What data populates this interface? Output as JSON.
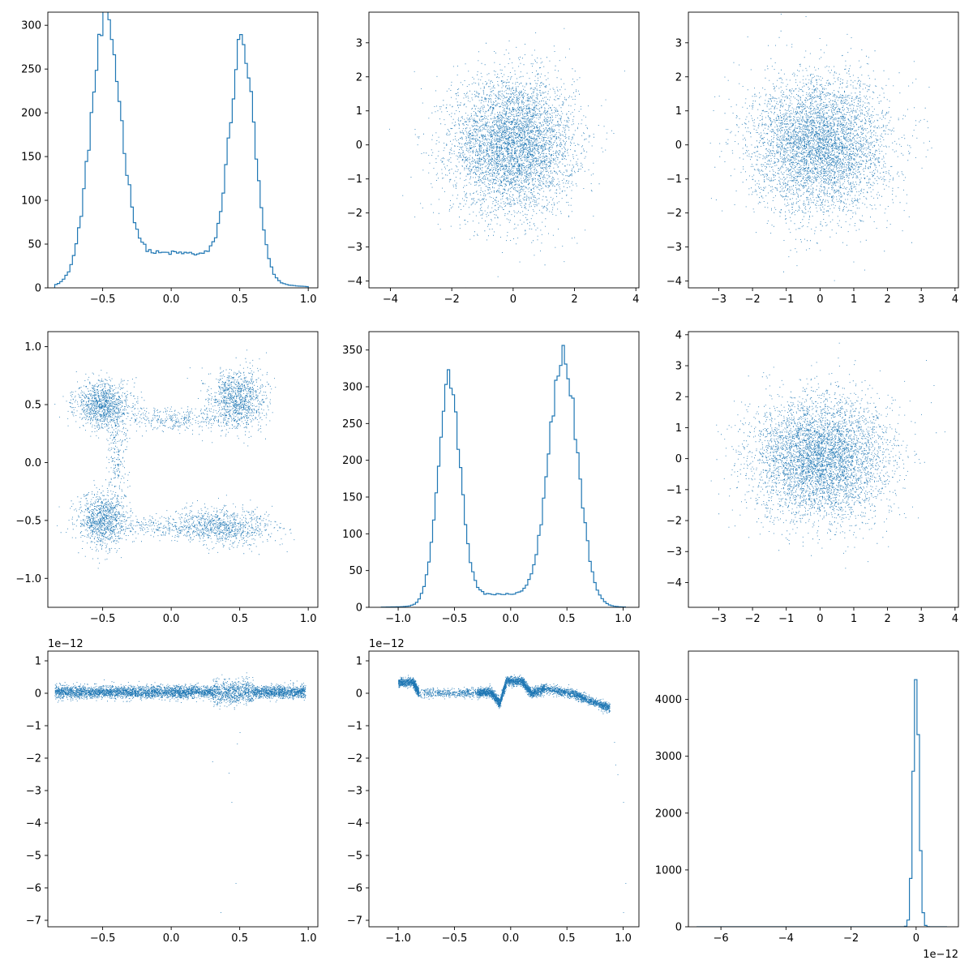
{
  "figure": {
    "rows": 3,
    "cols": 3,
    "series_color": "#1f77b4"
  },
  "chart_data": [
    {
      "type": "histogram",
      "panel": [
        0,
        0
      ],
      "xlim": [
        -0.9,
        1.07
      ],
      "ylim": [
        0,
        315
      ],
      "xticks": [
        -0.5,
        0.0,
        0.5,
        1.0
      ],
      "xticklabels": [
        "−0.5",
        "0.0",
        "0.5",
        "1.0"
      ],
      "yticks": [
        0,
        50,
        100,
        150,
        200,
        250,
        300
      ],
      "yticklabels": [
        "0",
        "50",
        "100",
        "150",
        "200",
        "250",
        "300"
      ],
      "offset_label": "",
      "peaks": [
        {
          "center": -0.48,
          "width": 0.11,
          "height": 280
        },
        {
          "center": 0.52,
          "width": 0.09,
          "height": 255
        }
      ],
      "baseline": 40,
      "support": [
        -0.85,
        1.0
      ],
      "bins": 100
    },
    {
      "type": "scatter",
      "panel": [
        0,
        1
      ],
      "xlim": [
        -4.7,
        4.1
      ],
      "ylim": [
        -4.2,
        3.9
      ],
      "xticks": [
        -4,
        -2,
        0,
        2,
        4
      ],
      "xticklabels": [
        "−4",
        "−2",
        "0",
        "2",
        "4"
      ],
      "yticks": [
        -4,
        -3,
        -2,
        -1,
        0,
        1,
        2,
        3
      ],
      "yticklabels": [
        "−4",
        "−3",
        "−2",
        "−1",
        "0",
        "1",
        "2",
        "3"
      ],
      "offset_label": "",
      "distribution": "gaussian",
      "mean": [
        0,
        0
      ],
      "std": [
        1,
        1
      ],
      "points": 5000
    },
    {
      "type": "scatter",
      "panel": [
        0,
        2
      ],
      "xlim": [
        -3.9,
        4.1
      ],
      "ylim": [
        -4.2,
        3.9
      ],
      "xticks": [
        -3,
        -2,
        -1,
        0,
        1,
        2,
        3,
        4
      ],
      "xticklabels": [
        "−3",
        "−2",
        "−1",
        "0",
        "1",
        "2",
        "3",
        "4"
      ],
      "yticks": [
        -4,
        -3,
        -2,
        -1,
        0,
        1,
        2,
        3
      ],
      "yticklabels": [
        "−4",
        "−3",
        "−2",
        "−1",
        "0",
        "1",
        "2",
        "3"
      ],
      "offset_label": "",
      "distribution": "gaussian",
      "mean": [
        0,
        0
      ],
      "std": [
        1,
        1
      ],
      "points": 5000
    },
    {
      "type": "scatter",
      "panel": [
        1,
        0
      ],
      "xlim": [
        -0.9,
        1.07
      ],
      "ylim": [
        -1.25,
        1.13
      ],
      "xticks": [
        -0.5,
        0.0,
        0.5,
        1.0
      ],
      "xticklabels": [
        "−0.5",
        "0.0",
        "0.5",
        "1.0"
      ],
      "yticks": [
        -1.0,
        -0.5,
        0.0,
        0.5,
        1.0
      ],
      "yticklabels": [
        "−1.0",
        "−0.5",
        "0.0",
        "0.5",
        "1.0"
      ],
      "offset_label": "",
      "clusters": [
        {
          "center": [
            -0.5,
            0.5
          ],
          "spread": [
            0.1,
            0.1
          ],
          "weight": 0.22
        },
        {
          "center": [
            0.48,
            0.55
          ],
          "spread": [
            0.1,
            0.13
          ],
          "weight": 0.22
        },
        {
          "center": [
            -0.5,
            -0.5
          ],
          "spread": [
            0.09,
            0.12
          ],
          "weight": 0.2
        },
        {
          "center": [
            0.4,
            -0.55
          ],
          "spread": [
            0.18,
            0.08
          ],
          "weight": 0.16
        },
        {
          "center": [
            0.0,
            0.38
          ],
          "spread": [
            0.25,
            0.05
          ],
          "weight": 0.08
        },
        {
          "center": [
            0.0,
            -0.55
          ],
          "spread": [
            0.3,
            0.05
          ],
          "weight": 0.08
        },
        {
          "center": [
            -0.4,
            0.0
          ],
          "spread": [
            0.04,
            0.2
          ],
          "weight": 0.04
        }
      ],
      "points": 5000
    },
    {
      "type": "histogram",
      "panel": [
        1,
        1
      ],
      "xlim": [
        -1.26,
        1.14
      ],
      "ylim": [
        0,
        375
      ],
      "xticks": [
        -1.0,
        -0.5,
        0.0,
        0.5,
        1.0
      ],
      "xticklabels": [
        "−1.0",
        "−0.5",
        "0.0",
        "0.5",
        "1.0"
      ],
      "yticks": [
        0,
        50,
        100,
        150,
        200,
        250,
        300,
        350
      ],
      "yticklabels": [
        "0",
        "50",
        "100",
        "150",
        "200",
        "250",
        "300",
        "350"
      ],
      "offset_label": "",
      "peaks": [
        {
          "center": -0.55,
          "width": 0.1,
          "height": 295
        },
        {
          "center": 0.47,
          "width": 0.13,
          "height": 325
        }
      ],
      "baseline": 18,
      "support": [
        -1.15,
        1.02
      ],
      "bins": 100
    },
    {
      "type": "scatter",
      "panel": [
        1,
        2
      ],
      "xlim": [
        -3.9,
        4.1
      ],
      "ylim": [
        -4.8,
        4.1
      ],
      "xticks": [
        -3,
        -2,
        -1,
        0,
        1,
        2,
        3,
        4
      ],
      "xticklabels": [
        "−3",
        "−2",
        "−1",
        "0",
        "1",
        "2",
        "3",
        "4"
      ],
      "yticks": [
        -4,
        -3,
        -2,
        -1,
        0,
        1,
        2,
        3,
        4
      ],
      "yticklabels": [
        "−4",
        "−3",
        "−2",
        "−1",
        "0",
        "1",
        "2",
        "3",
        "4"
      ],
      "offset_label": "",
      "distribution": "gaussian",
      "mean": [
        0,
        0
      ],
      "std": [
        1,
        1
      ],
      "points": 5000
    },
    {
      "type": "scatter",
      "panel": [
        2,
        0
      ],
      "xlim": [
        -0.9,
        1.07
      ],
      "ylim": [
        -7.2,
        1.3
      ],
      "xticks": [
        -0.5,
        0.0,
        0.5,
        1.0
      ],
      "xticklabels": [
        "−0.5",
        "0.0",
        "0.5",
        "1.0"
      ],
      "yticks": [
        -7,
        -6,
        -5,
        -4,
        -3,
        -2,
        -1,
        0,
        1
      ],
      "yticklabels": [
        "−7",
        "−6",
        "−5",
        "−4",
        "−3",
        "−2",
        "−1",
        "0",
        "1"
      ],
      "offset_label": "1e−12",
      "band": {
        "x_range": [
          -0.85,
          0.98
        ],
        "y_center": 0.05,
        "y_spread": 0.12
      },
      "outliers": [
        [
          0.3,
          -2.1
        ],
        [
          0.42,
          -2.45
        ],
        [
          0.44,
          -3.35
        ],
        [
          0.47,
          -5.85
        ],
        [
          0.36,
          -6.75
        ],
        [
          0.5,
          -1.2
        ],
        [
          0.48,
          -1.55
        ]
      ],
      "points": 5000
    },
    {
      "type": "scatter",
      "panel": [
        2,
        1
      ],
      "xlim": [
        -1.26,
        1.14
      ],
      "ylim": [
        -7.2,
        1.3
      ],
      "xticks": [
        -1.0,
        -0.5,
        0.0,
        0.5,
        1.0
      ],
      "xticklabels": [
        "−1.0",
        "−0.5",
        "0.0",
        "0.5",
        "1.0"
      ],
      "yticks": [
        -7,
        -6,
        -5,
        -4,
        -3,
        -2,
        -1,
        0,
        1
      ],
      "yticklabels": [
        "−7",
        "−6",
        "−5",
        "−4",
        "−3",
        "−2",
        "−1",
        "0",
        "1"
      ],
      "offset_label": "1e−12",
      "curve": [
        [
          -1.0,
          0.35
        ],
        [
          -0.87,
          0.35
        ],
        [
          -0.82,
          0.02
        ],
        [
          -0.3,
          0.02
        ],
        [
          -0.18,
          0.05
        ],
        [
          -0.1,
          -0.3
        ],
        [
          -0.04,
          0.38
        ],
        [
          0.1,
          0.38
        ],
        [
          0.18,
          0.0
        ],
        [
          0.3,
          0.15
        ],
        [
          0.55,
          0.0
        ],
        [
          0.72,
          -0.25
        ],
        [
          0.88,
          -0.45
        ]
      ],
      "curve_spread": 0.07,
      "outliers": [
        [
          0.92,
          -1.5
        ],
        [
          0.93,
          -2.2
        ],
        [
          0.95,
          -2.5
        ],
        [
          1.0,
          -3.35
        ],
        [
          1.02,
          -5.85
        ],
        [
          1.0,
          -6.75
        ]
      ],
      "points": 5000
    },
    {
      "type": "histogram",
      "panel": [
        2,
        2
      ],
      "xlim": [
        -7.0,
        1.3
      ],
      "ylim": [
        0,
        4850
      ],
      "xticks": [
        -6,
        -4,
        -2,
        0
      ],
      "xticklabels": [
        "−6",
        "−4",
        "−2",
        "0"
      ],
      "yticks": [
        0,
        1000,
        2000,
        3000,
        4000
      ],
      "yticklabels": [
        "0",
        "1000",
        "2000",
        "3000",
        "4000"
      ],
      "offset_label": "1e−12",
      "peaks": [
        {
          "center": 0.0,
          "width": 0.09,
          "height": 4650
        }
      ],
      "baseline": 0,
      "support": [
        -6.75,
        0.95
      ],
      "bins": 100
    }
  ]
}
